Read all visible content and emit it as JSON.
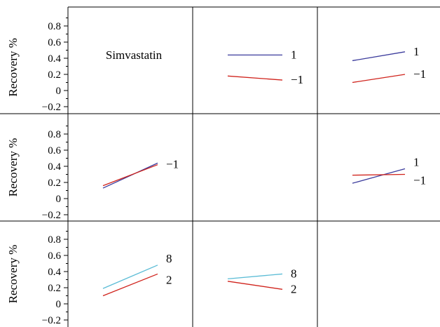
{
  "chart_data": {
    "type": "line",
    "title": "",
    "ylabel": "Recovery %",
    "yticks": [
      "0.8",
      "0.6",
      "0.4",
      "0.2",
      "0",
      "−0.2"
    ],
    "ylim": [
      -0.25,
      0.95
    ],
    "grid": false,
    "panels": [
      {
        "row": 0,
        "col": 0,
        "label": "Simvastatin",
        "series": []
      },
      {
        "row": 0,
        "col": 1,
        "series": [
          {
            "level": "1",
            "color": "#3b3b9c",
            "values": [
              0.44,
              0.44
            ]
          },
          {
            "level": "−1",
            "color": "#d0231c",
            "values": [
              0.18,
              0.13
            ]
          }
        ]
      },
      {
        "row": 0,
        "col": 2,
        "series": [
          {
            "level": "1",
            "color": "#3b3b9c",
            "values": [
              0.37,
              0.48
            ]
          },
          {
            "level": "−1",
            "color": "#d0231c",
            "values": [
              0.1,
              0.2
            ]
          }
        ]
      },
      {
        "row": 1,
        "col": 0,
        "series": [
          {
            "level": "",
            "color": "#3b3b9c",
            "values": [
              0.13,
              0.44
            ]
          },
          {
            "level": "−1",
            "color": "#d0231c",
            "values": [
              0.16,
              0.42
            ]
          }
        ]
      },
      {
        "row": 1,
        "col": 1,
        "series": []
      },
      {
        "row": 1,
        "col": 2,
        "series": [
          {
            "level": "1",
            "color": "#3b3b9c",
            "values": [
              0.19,
              0.37
            ]
          },
          {
            "level": "−1",
            "color": "#d0231c",
            "values": [
              0.29,
              0.3
            ]
          }
        ]
      },
      {
        "row": 2,
        "col": 0,
        "series": [
          {
            "level": "8",
            "color": "#5bbcd6",
            "values": [
              0.19,
              0.48
            ]
          },
          {
            "level": "2",
            "color": "#d0231c",
            "values": [
              0.1,
              0.37
            ]
          }
        ]
      },
      {
        "row": 2,
        "col": 1,
        "series": [
          {
            "level": "8",
            "color": "#5bbcd6",
            "values": [
              0.31,
              0.37
            ]
          },
          {
            "level": "2",
            "color": "#d0231c",
            "values": [
              0.28,
              0.18
            ]
          }
        ]
      },
      {
        "row": 2,
        "col": 2,
        "series": []
      }
    ]
  }
}
